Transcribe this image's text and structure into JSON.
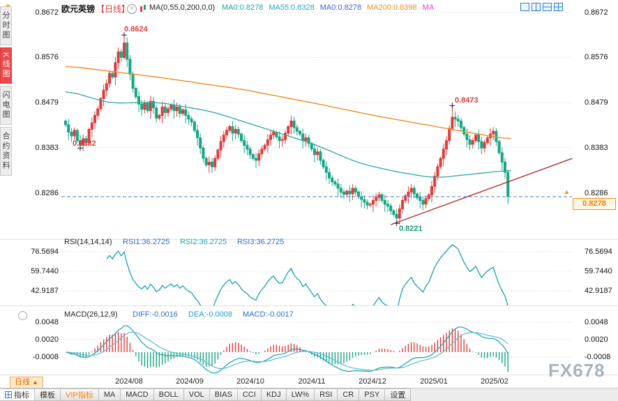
{
  "header": {
    "symbol": "欧元英镑",
    "period": "【日线】",
    "expand_glyph": "+",
    "ma_settings": "MA(0,55,0,200,0,0)",
    "ma_values": [
      {
        "label": "MA0:0.8278",
        "color": "#1fa39b"
      },
      {
        "label": "MA55:0.8328",
        "color": "#22a5c4"
      },
      {
        "label": "MA0:0.8278",
        "color": "#3a62d8"
      },
      {
        "label": "MA200:0.8398",
        "color": "#f08c1e"
      },
      {
        "label": "MA",
        "color": "#e03bd0"
      }
    ]
  },
  "sidebar": {
    "items": [
      {
        "label": "分时图",
        "active": false
      },
      {
        "label": "K线图",
        "active": true
      },
      {
        "label": "闪电图",
        "active": false
      },
      {
        "label": "合约资料",
        "active": false
      }
    ]
  },
  "annotations": {
    "high_aug": "0.8624",
    "low_jul": "0.8382",
    "high_jan": "0.8473",
    "low_dec": "0.8221"
  },
  "badge": {
    "price": "0.8278",
    "arrow": "▲"
  },
  "rsi_header": {
    "title": "RSI(14,14,14)",
    "rsi1": "RSI1:36.2725",
    "rsi2": "RSI2:36.2725",
    "rsi3": "RSI3:36.2725"
  },
  "macd_header": {
    "title": "MACD(26,12,9)",
    "diff": "DIFF:-0.0016",
    "dea": "DEA:-0.0008",
    "macd": "MACD:-0.0017",
    "collapse_glyph": "●"
  },
  "period_button": {
    "label": "日线",
    "arrow": "▲"
  },
  "watermark": "FX678",
  "toolbar": {
    "items": [
      {
        "label": "指标",
        "icon": true,
        "active": true
      },
      {
        "label": "模板"
      },
      {
        "label": "VIP指标",
        "vip": true
      },
      {
        "label": "MA"
      },
      {
        "label": "MACD"
      },
      {
        "label": "BOLL"
      },
      {
        "label": "VOL"
      },
      {
        "label": "BIAS"
      },
      {
        "label": "CCI"
      },
      {
        "label": "KDJ"
      },
      {
        "label": "LW%"
      },
      {
        "label": "RSI"
      },
      {
        "label": "CR"
      },
      {
        "label": "PSY"
      },
      {
        "label": "设置"
      }
    ]
  },
  "chart_data": {
    "type": "candlestick+rsi+macd",
    "title": "欧元英镑 日线",
    "price_axis_labels": [
      "0.8672",
      "0.8576",
      "0.8479",
      "0.8383",
      "0.8286"
    ],
    "rsi_axis_labels": [
      "76.5694",
      "59.7440",
      "42.9187"
    ],
    "macd_axis_labels": [
      "0.0048",
      "0.0020",
      "-0.0008"
    ],
    "x_axis_labels": [
      "2024/08",
      "2024/09",
      "2024/10",
      "2024/11",
      "2024/12",
      "2025/01",
      "2025/02"
    ],
    "current_price": 0.8278,
    "open0": 0.844,
    "closes": [
      0.8432,
      0.8416,
      0.8408,
      0.842,
      0.8398,
      0.8388,
      0.8402,
      0.8394,
      0.8422,
      0.8436,
      0.8452,
      0.8466,
      0.8488,
      0.8506,
      0.852,
      0.8542,
      0.8534,
      0.8565,
      0.8588,
      0.8576,
      0.8607,
      0.8572,
      0.854,
      0.851,
      0.8492,
      0.8476,
      0.8465,
      0.8478,
      0.8462,
      0.8482,
      0.8468,
      0.8446,
      0.8452,
      0.847,
      0.8458,
      0.8466,
      0.8474,
      0.8462,
      0.847,
      0.8456,
      0.8464,
      0.8452,
      0.8444,
      0.8438,
      0.842,
      0.8404,
      0.8382,
      0.836,
      0.8346,
      0.8352,
      0.8342,
      0.836,
      0.8378,
      0.8396,
      0.841,
      0.842,
      0.8428,
      0.8414,
      0.8422,
      0.8412,
      0.8398,
      0.8388,
      0.838,
      0.8368,
      0.836,
      0.8356,
      0.837,
      0.838,
      0.8388,
      0.84,
      0.841,
      0.8416,
      0.8406,
      0.8398,
      0.84,
      0.8414,
      0.8428,
      0.844,
      0.8426,
      0.8418,
      0.8412,
      0.8398,
      0.8404,
      0.8392,
      0.838,
      0.8368,
      0.8374,
      0.8356,
      0.8342,
      0.833,
      0.8318,
      0.831,
      0.8305,
      0.8296,
      0.8288,
      0.8283,
      0.829,
      0.8284,
      0.8296,
      0.8288,
      0.8278,
      0.8272,
      0.8266,
      0.826,
      0.8262,
      0.827,
      0.8276,
      0.8282,
      0.827,
      0.8262,
      0.8258,
      0.8248,
      0.824,
      0.8232,
      0.8252,
      0.827,
      0.828,
      0.8288,
      0.8296,
      0.8284,
      0.8276,
      0.827,
      0.8262,
      0.8274,
      0.8282,
      0.83,
      0.8322,
      0.8342,
      0.836,
      0.838,
      0.8398,
      0.8424,
      0.8448,
      0.8444,
      0.844,
      0.8426,
      0.8412,
      0.84,
      0.839,
      0.8398,
      0.841,
      0.8396,
      0.8382,
      0.8394,
      0.8404,
      0.8412,
      0.8418,
      0.8396,
      0.8372,
      0.8352,
      0.833,
      0.8278
    ],
    "wick_overrides": {
      "5": {
        "low": 0.8382
      },
      "20": {
        "high": 0.8624
      },
      "113": {
        "low": 0.8221
      },
      "132": {
        "high": 0.8473
      },
      "151": {
        "low": 0.8262
      }
    },
    "extreme_markers": [
      [
        5,
        0.8382
      ],
      [
        20,
        0.8624
      ],
      [
        113,
        0.8221
      ],
      [
        132,
        0.8473
      ]
    ],
    "ma200_waypoints": [
      [
        0,
        0.8558
      ],
      [
        30,
        0.8535
      ],
      [
        60,
        0.8508
      ],
      [
        85,
        0.8478
      ],
      [
        105,
        0.8452
      ],
      [
        130,
        0.8424
      ],
      [
        152,
        0.84
      ]
    ],
    "ma55_waypoints": [
      [
        0,
        0.8506
      ],
      [
        15,
        0.8478
      ],
      [
        32,
        0.848
      ],
      [
        50,
        0.846
      ],
      [
        65,
        0.843
      ],
      [
        85,
        0.839
      ],
      [
        100,
        0.835
      ],
      [
        113,
        0.8331
      ],
      [
        126,
        0.8318
      ],
      [
        140,
        0.8327
      ],
      [
        152,
        0.8335
      ]
    ],
    "trendline": {
      "from": [
        111,
        0.8218
      ],
      "to": [
        173,
        0.836
      ]
    },
    "colors": {
      "up": "#e23b3b",
      "down": "#18a584",
      "ma200": "#f08c1e",
      "ma55": "#2aa7a0",
      "trend": "#b03030",
      "current_line": "#4a7ebb",
      "rsi": "#18a0b0",
      "diff": "#18a0b0",
      "dea": "#5fb9c9",
      "grid": "#cfcfcf"
    }
  }
}
